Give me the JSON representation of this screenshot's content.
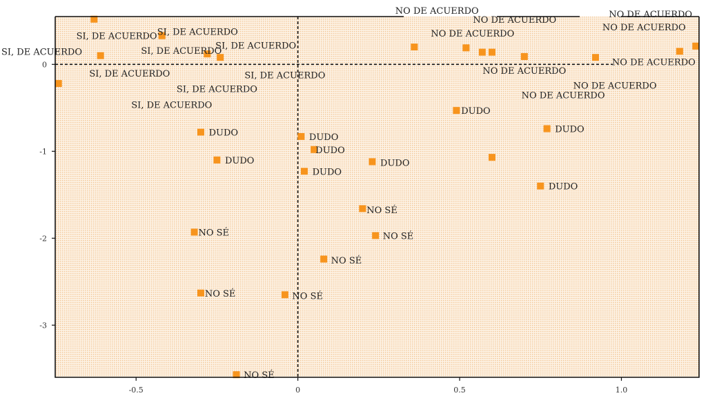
{
  "chart_data": {
    "type": "scatter",
    "title": "",
    "xlabel": "",
    "ylabel": "",
    "xlim": [
      -0.75,
      1.24
    ],
    "ylim": [
      -3.6,
      0.55
    ],
    "grid": false,
    "reference_lines": {
      "x": 0,
      "y": 0
    },
    "x_ticks": [
      {
        "value": -0.5,
        "label": "-0.5"
      },
      {
        "value": 0,
        "label": "0"
      },
      {
        "value": 0.5,
        "label": "0.5"
      },
      {
        "value": 1.0,
        "label": "1.0"
      }
    ],
    "y_ticks": [
      {
        "value": 0,
        "label": "0"
      },
      {
        "value": -1,
        "label": "-1"
      },
      {
        "value": -2,
        "label": "-2"
      },
      {
        "value": -3,
        "label": "-3"
      }
    ],
    "points": [
      {
        "x": -0.63,
        "y": 0.52
      },
      {
        "x": -0.42,
        "y": 0.33
      },
      {
        "x": -0.61,
        "y": 0.1
      },
      {
        "x": -0.28,
        "y": 0.12
      },
      {
        "x": -0.24,
        "y": 0.08
      },
      {
        "x": -0.74,
        "y": -0.22
      },
      {
        "x": 0.36,
        "y": 0.2
      },
      {
        "x": 0.52,
        "y": 0.19
      },
      {
        "x": 0.57,
        "y": 0.14
      },
      {
        "x": 0.6,
        "y": 0.14
      },
      {
        "x": 0.7,
        "y": 0.09
      },
      {
        "x": 0.92,
        "y": 0.08
      },
      {
        "x": 1.18,
        "y": 0.15
      },
      {
        "x": 1.23,
        "y": 0.21
      },
      {
        "x": 0.49,
        "y": -0.53
      },
      {
        "x": 0.77,
        "y": -0.74
      },
      {
        "x": 0.6,
        "y": -1.07
      },
      {
        "x": 0.75,
        "y": -1.4
      },
      {
        "x": -0.3,
        "y": -0.78
      },
      {
        "x": -0.25,
        "y": -1.1
      },
      {
        "x": 0.01,
        "y": -0.83
      },
      {
        "x": 0.05,
        "y": -0.98
      },
      {
        "x": 0.23,
        "y": -1.12
      },
      {
        "x": 0.02,
        "y": -1.23
      },
      {
        "x": 0.2,
        "y": -1.66
      },
      {
        "x": 0.24,
        "y": -1.97
      },
      {
        "x": -0.32,
        "y": -1.93
      },
      {
        "x": 0.08,
        "y": -2.24
      },
      {
        "x": -0.3,
        "y": -2.63
      },
      {
        "x": -0.04,
        "y": -2.65
      },
      {
        "x": -0.19,
        "y": -3.57
      }
    ],
    "labels": [
      {
        "text": "SI, DE ACUERDO",
        "x": -0.56,
        "y": 0.33
      },
      {
        "text": "SI, DE ACUERDO",
        "x": -0.31,
        "y": 0.38
      },
      {
        "text": "SI, DE ACUERDO",
        "x": -0.36,
        "y": 0.16
      },
      {
        "text": "SI, DE ACUERDO",
        "x": -0.13,
        "y": 0.22
      },
      {
        "text": "SI, DE ACUERDO",
        "x": -0.82,
        "y": 0.15
      },
      {
        "text": "SI, DE ACUERDO",
        "x": -0.52,
        "y": -0.1
      },
      {
        "text": "SI, DE ACUERDO",
        "x": -0.04,
        "y": -0.12
      },
      {
        "text": "SI, DE ACUERDO",
        "x": -0.25,
        "y": -0.28
      },
      {
        "text": "SI, DE ACUERDO",
        "x": -0.39,
        "y": -0.46
      },
      {
        "text": "NO DE ACUERDO",
        "x": 0.43,
        "y": 0.62
      },
      {
        "text": "NO DE ACUERDO",
        "x": 0.67,
        "y": 0.52
      },
      {
        "text": "NO DE ACUERDO",
        "x": 1.09,
        "y": 0.58
      },
      {
        "text": "NO DE ACUERDO",
        "x": 1.07,
        "y": 0.43
      },
      {
        "text": "NO DE ACUERDO",
        "x": 0.54,
        "y": 0.36
      },
      {
        "text": "NO DE ACUERDO",
        "x": 0.7,
        "y": -0.07
      },
      {
        "text": "NO DE ACUERDO",
        "x": 1.1,
        "y": 0.03
      },
      {
        "text": "NO DE ACUERDO",
        "x": 0.98,
        "y": -0.24
      },
      {
        "text": "NO DE ACUERDO",
        "x": 0.82,
        "y": -0.35
      },
      {
        "text": "DUDO",
        "x": 0.55,
        "y": -0.53
      },
      {
        "text": "DUDO",
        "x": 0.84,
        "y": -0.74
      },
      {
        "text": "DUDO",
        "x": 0.82,
        "y": -1.4
      },
      {
        "text": "DUDO",
        "x": -0.23,
        "y": -0.78
      },
      {
        "text": "DUDO",
        "x": -0.18,
        "y": -1.1
      },
      {
        "text": "DUDO",
        "x": 0.08,
        "y": -0.83
      },
      {
        "text": "DUDO",
        "x": 0.1,
        "y": -0.98
      },
      {
        "text": "DUDO",
        "x": 0.3,
        "y": -1.13
      },
      {
        "text": "DUDO",
        "x": 0.09,
        "y": -1.23
      },
      {
        "text": "NO SÉ",
        "x": 0.26,
        "y": -1.67
      },
      {
        "text": "NO SÉ",
        "x": 0.31,
        "y": -1.97
      },
      {
        "text": "NO SÉ",
        "x": -0.26,
        "y": -1.93
      },
      {
        "text": "NO SÉ",
        "x": 0.15,
        "y": -2.25
      },
      {
        "text": "NO SÉ",
        "x": -0.24,
        "y": -2.63
      },
      {
        "text": "NO SÉ",
        "x": 0.03,
        "y": -2.66
      },
      {
        "text": "NO SÉ",
        "x": -0.12,
        "y": -3.57
      }
    ],
    "colors": {
      "marker": "#f7941d",
      "plot_background": "#fcebd7",
      "frame": "#111111",
      "reference_line": "#111111"
    }
  }
}
